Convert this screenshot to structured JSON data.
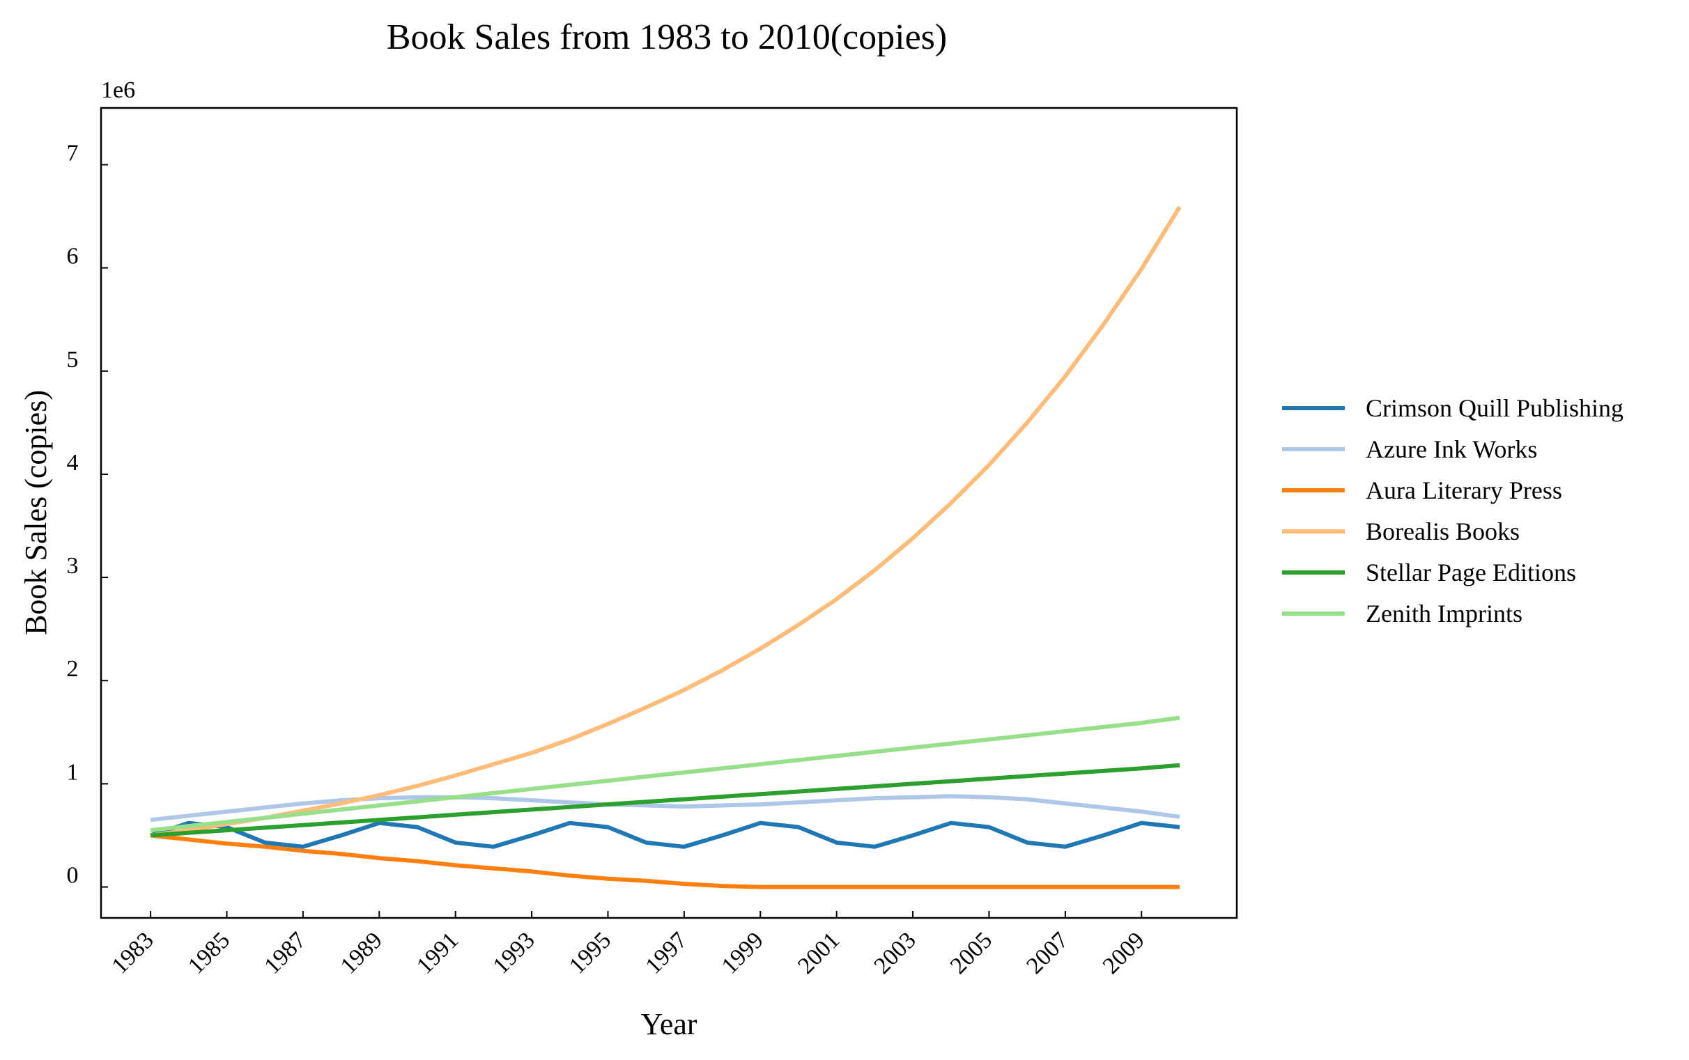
{
  "chart_data": {
    "type": "line",
    "title": "Book Sales from 1983 to 2010(copies)",
    "xlabel": "Year",
    "ylabel": "Book Sales (copies)",
    "y_offset_label": "1e6",
    "xlim": [
      1981.7,
      2011.5
    ],
    "ylim": [
      -0.3,
      7.55
    ],
    "y_scale_factor": 1000000,
    "x_ticks": [
      1983,
      1985,
      1987,
      1989,
      1991,
      1993,
      1995,
      1997,
      1999,
      2001,
      2003,
      2005,
      2007,
      2009
    ],
    "x_tick_labels": [
      "1983",
      "1985",
      "1987",
      "1989",
      "1991",
      "1993",
      "1995",
      "1997",
      "1999",
      "2001",
      "2003",
      "2005",
      "2007",
      "2009"
    ],
    "y_ticks": [
      0,
      1,
      2,
      3,
      4,
      5,
      6,
      7
    ],
    "y_tick_labels": [
      "0",
      "1",
      "2",
      "3",
      "4",
      "5",
      "6",
      "7"
    ],
    "grid": false,
    "legend_position": "right",
    "x": [
      1983,
      1984,
      1985,
      1986,
      1987,
      1988,
      1989,
      1990,
      1991,
      1992,
      1993,
      1994,
      1995,
      1996,
      1997,
      1998,
      1999,
      2000,
      2001,
      2002,
      2003,
      2004,
      2005,
      2006,
      2007,
      2008,
      2009,
      2010
    ],
    "series": [
      {
        "name": "Crimson Quill Publishing",
        "color": "#1f77b4",
        "values": [
          0.5,
          0.62,
          0.58,
          0.43,
          0.39,
          0.5,
          0.62,
          0.58,
          0.43,
          0.39,
          0.5,
          0.62,
          0.58,
          0.43,
          0.39,
          0.5,
          0.62,
          0.58,
          0.43,
          0.39,
          0.5,
          0.62,
          0.58,
          0.43,
          0.39,
          0.5,
          0.62,
          0.58
        ]
      },
      {
        "name": "Azure Ink Works",
        "color": "#aec7e8",
        "values": [
          0.65,
          0.69,
          0.73,
          0.77,
          0.81,
          0.84,
          0.86,
          0.87,
          0.87,
          0.86,
          0.84,
          0.82,
          0.8,
          0.79,
          0.78,
          0.79,
          0.8,
          0.82,
          0.84,
          0.86,
          0.87,
          0.88,
          0.87,
          0.85,
          0.81,
          0.77,
          0.73,
          0.68
        ]
      },
      {
        "name": "Aura Literary Press",
        "color": "#ff7f0e",
        "values": [
          0.5,
          0.46,
          0.42,
          0.39,
          0.35,
          0.32,
          0.28,
          0.25,
          0.21,
          0.18,
          0.15,
          0.11,
          0.08,
          0.06,
          0.03,
          0.01,
          0.0,
          0.0,
          0.0,
          0.0,
          0.0,
          0.0,
          0.0,
          0.0,
          0.0,
          0.0,
          0.0,
          0.0
        ]
      },
      {
        "name": "Borealis Books",
        "color": "#ffbb78",
        "values": [
          0.5,
          0.55,
          0.61,
          0.67,
          0.74,
          0.81,
          0.89,
          0.98,
          1.08,
          1.19,
          1.3,
          1.43,
          1.58,
          1.74,
          1.91,
          2.1,
          2.31,
          2.54,
          2.79,
          3.07,
          3.38,
          3.72,
          4.09,
          4.5,
          4.95,
          5.45,
          5.99,
          6.59
        ]
      },
      {
        "name": "Stellar Page Editions",
        "color": "#2ca02c",
        "values": [
          0.5,
          0.525,
          0.55,
          0.575,
          0.6,
          0.625,
          0.65,
          0.675,
          0.7,
          0.725,
          0.75,
          0.775,
          0.8,
          0.825,
          0.85,
          0.875,
          0.9,
          0.925,
          0.95,
          0.975,
          1.0,
          1.025,
          1.05,
          1.075,
          1.1,
          1.125,
          1.15,
          1.18
        ]
      },
      {
        "name": "Zenith Imprints",
        "color": "#98df8a",
        "values": [
          0.55,
          0.59,
          0.63,
          0.67,
          0.71,
          0.75,
          0.79,
          0.83,
          0.87,
          0.91,
          0.95,
          0.99,
          1.03,
          1.07,
          1.11,
          1.15,
          1.19,
          1.23,
          1.27,
          1.31,
          1.35,
          1.39,
          1.43,
          1.47,
          1.51,
          1.55,
          1.59,
          1.64
        ]
      }
    ]
  }
}
